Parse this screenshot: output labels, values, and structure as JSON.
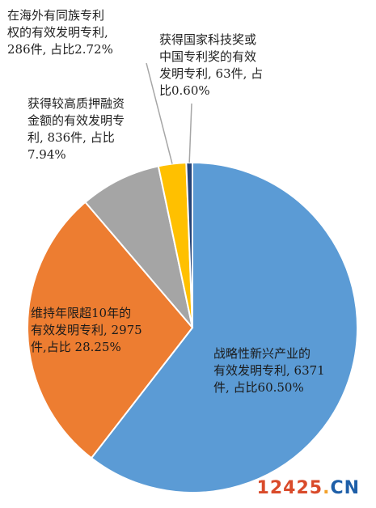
{
  "chart_data": {
    "type": "pie",
    "start_angle_deg": 0,
    "direction": "clockwise",
    "slices": [
      {
        "label": "战略性新兴产业的有效发明专利, 6371件, 占比60.50%",
        "value": 6371,
        "percent": 60.5,
        "color": "#5b9bd5"
      },
      {
        "label": "维持年限超10年的有效发明专利, 2975件, 占比 28.25%",
        "value": 2975,
        "percent": 28.25,
        "color": "#ed7d31"
      },
      {
        "label": "获得较高质押融资金额的有效发明专利, 836件, 占比7.94%",
        "value": 836,
        "percent": 7.94,
        "color": "#a5a5a5"
      },
      {
        "label": "在海外有同族专利权的有效发明专利, 286件, 占比2.72%",
        "value": 286,
        "percent": 2.72,
        "color": "#ffc000"
      },
      {
        "label": "获得国家科技奖或中国专利奖的有效发明专利, 63件, 占比0.60%",
        "value": 63,
        "percent": 0.6,
        "color": "#264478"
      }
    ]
  },
  "labels": [
    "战略性新兴产业的\n有效发明专利, 6371\n件, 占比60.50%",
    "维持年限超10年的\n有效发明专利, 2975\n件,占比 28.25%",
    "获得较高质押融资\n金额的有效发明专\n利, 836件, 占比\n7.94%",
    "在海外有同族专利\n权的有效发明专利,\n286件, 占比2.72%",
    "获得国家科技奖或\n中国专利奖的有效\n发明专利, 63件, 占\n比0.60%"
  ],
  "watermark": {
    "num": "12425",
    "dot": ".",
    "tld": "CN"
  }
}
